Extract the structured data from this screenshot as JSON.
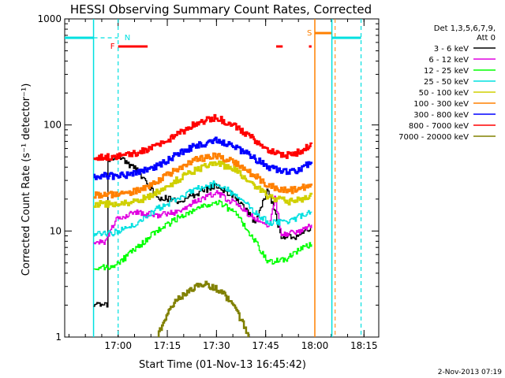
{
  "chart_data": {
    "type": "line",
    "title": "HESSI Observing Summary Count Rates, Corrected",
    "xlabel": "Start Time (01-Nov-13 16:45:42)",
    "ylabel": "Corrected Count Rate (s⁻¹ detector⁻¹)",
    "yscale": "log",
    "ylim": [
      1,
      1000
    ],
    "xlim_minutes": [
      -2,
      93.8
    ],
    "xticks": [
      {
        "label": "17:00",
        "minute": 14.3
      },
      {
        "label": "17:15",
        "minute": 29.3
      },
      {
        "label": "17:30",
        "minute": 44.3
      },
      {
        "label": "17:45",
        "minute": 59.3
      },
      {
        "label": "18:00",
        "minute": 74.3
      },
      {
        "label": "18:15",
        "minute": 89.3
      }
    ],
    "yticks": [
      {
        "label": "1",
        "value": 1
      },
      {
        "label": "10",
        "value": 10
      },
      {
        "label": "100",
        "value": 100
      },
      {
        "label": "1000",
        "value": 1000
      }
    ],
    "grid": false,
    "legend_placement": "right",
    "legend_header": [
      "Det 1,3,5,6,7,9,",
      "Att 0"
    ],
    "series": [
      {
        "name": "3 - 6 keV",
        "color": "#000000",
        "x": [
          6.8,
          11.2,
          11.2,
          14,
          20,
          26,
          33,
          38,
          44,
          50,
          56,
          60,
          64,
          68,
          72,
          73.3
        ],
        "y": [
          2,
          2,
          48,
          50,
          38,
          21,
          19,
          22,
          27,
          21,
          12,
          25,
          9,
          8.7,
          10.5,
          11
        ]
      },
      {
        "name": "6 - 12 keV",
        "color": "#e000e0",
        "x": [
          6.8,
          10,
          14,
          20,
          26,
          32,
          38,
          44,
          50,
          56,
          60,
          62,
          64,
          68,
          72,
          73.3
        ],
        "y": [
          7.5,
          8,
          13,
          15,
          14,
          15,
          19,
          23,
          18,
          13,
          11,
          20,
          9.5,
          9.5,
          11,
          11.5
        ]
      },
      {
        "name": "12 - 25 keV",
        "color": "#00ff00",
        "x": [
          6.8,
          12,
          16,
          20,
          26,
          32,
          38,
          44,
          50,
          55,
          60,
          66,
          70,
          73.3
        ],
        "y": [
          4.5,
          4.5,
          5.5,
          7,
          10,
          13,
          16,
          19,
          15,
          9,
          5,
          5.5,
          7,
          7.5
        ]
      },
      {
        "name": "25 - 50 keV",
        "color": "#00e0e0",
        "x": [
          6.8,
          12,
          16,
          20,
          26,
          32,
          38,
          44,
          50,
          55,
          60,
          66,
          70,
          73.3
        ],
        "y": [
          9.5,
          9.5,
          10.5,
          12,
          16,
          20,
          25,
          28,
          22,
          16,
          12,
          12,
          14,
          15
        ]
      },
      {
        "name": "50 - 100 keV",
        "color": "#d0d000",
        "x": [
          6.8,
          14,
          20,
          26,
          32,
          38,
          44,
          50,
          56,
          60,
          66,
          70,
          73.3
        ],
        "y": [
          18,
          18,
          19,
          23,
          30,
          38,
          44,
          38,
          27,
          21,
          19,
          20,
          22
        ]
      },
      {
        "name": "100 - 300 keV",
        "color": "#ff8000",
        "x": [
          6.8,
          14,
          20,
          26,
          32,
          38,
          44,
          50,
          56,
          60,
          66,
          70,
          73.3
        ],
        "y": [
          22,
          22,
          24,
          29,
          38,
          47,
          52,
          44,
          33,
          27,
          24,
          25,
          28
        ]
      },
      {
        "name": "300 - 800 keV",
        "color": "#0000ff",
        "x": [
          6.8,
          14,
          20,
          26,
          32,
          38,
          44,
          50,
          56,
          60,
          66,
          70,
          73.3
        ],
        "y": [
          33,
          33,
          35,
          41,
          52,
          64,
          71,
          62,
          48,
          40,
          36,
          38,
          45
        ]
      },
      {
        "name": "800 - 7000 keV",
        "color": "#ff0000",
        "x": [
          6.8,
          14,
          20,
          26,
          32,
          38,
          44,
          50,
          56,
          60,
          66,
          70,
          73.3
        ],
        "y": [
          50,
          50,
          54,
          64,
          80,
          104,
          118,
          98,
          72,
          56,
          52,
          56,
          66
        ]
      },
      {
        "name": "7000 - 20000 keV",
        "color": "#808000",
        "x": [
          26,
          28,
          30,
          32,
          34,
          36,
          38,
          40,
          42,
          44,
          46,
          48,
          50,
          52,
          54
        ],
        "y": [
          1,
          1.3,
          1.8,
          2.2,
          2.5,
          2.8,
          3,
          3.2,
          3,
          2.9,
          2.6,
          2.2,
          1.8,
          1.4,
          1
        ]
      }
    ],
    "orbit_marks": [
      {
        "label": "N",
        "minute": 14.3,
        "color": "#00e0e0"
      },
      {
        "label": "S",
        "minute": 74.3,
        "color": "#ff8000"
      }
    ],
    "flare_marks": [
      {
        "label": "F",
        "from_minute": 14.3,
        "to_minute": 23.3,
        "color": "#ff0000"
      }
    ],
    "timestamp": "2-Nov-2013 07:19"
  }
}
